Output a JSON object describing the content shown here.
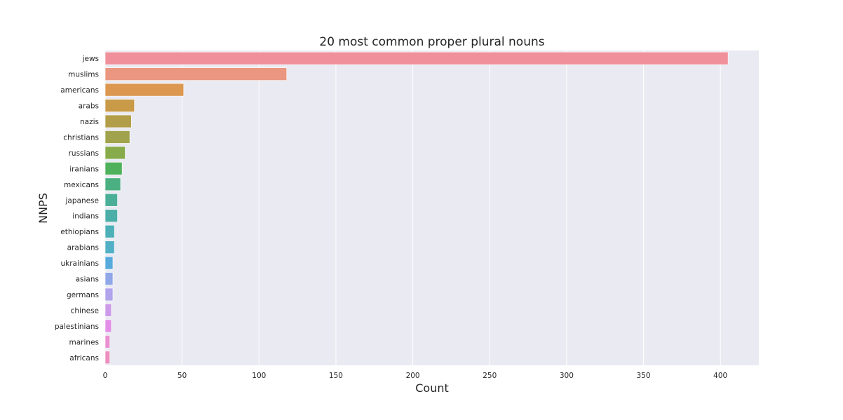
{
  "chart_data": {
    "type": "bar",
    "orientation": "horizontal",
    "title": "20 most common proper plural nouns",
    "xlabel": "Count",
    "ylabel": "NNPS",
    "xlim": [
      0,
      425
    ],
    "xticks": [
      0,
      50,
      100,
      150,
      200,
      250,
      300,
      350,
      400
    ],
    "grid": true,
    "categories": [
      "jews",
      "muslims",
      "americans",
      "arabs",
      "nazis",
      "christians",
      "russians",
      "iranians",
      "mexicans",
      "japanese",
      "indians",
      "ethiopians",
      "arabians",
      "ukrainians",
      "asians",
      "germans",
      "chinese",
      "palestinians",
      "marines",
      "africans"
    ],
    "values": [
      405,
      118,
      51,
      19,
      17,
      16,
      13,
      11,
      10,
      8,
      8,
      6,
      6,
      5,
      5,
      5,
      4,
      4,
      3,
      3
    ],
    "colors": [
      "#f0909b",
      "#ea9680",
      "#dc9850",
      "#c99b48",
      "#b29e49",
      "#a0a34b",
      "#87ab4a",
      "#50b15c",
      "#4bb081",
      "#4baf98",
      "#4bafa7",
      "#4cb0b6",
      "#52b0c6",
      "#58aadc",
      "#90a8e8",
      "#b1a3ec",
      "#cd9aea",
      "#e38fe8",
      "#ea8fd2",
      "#ec8fbd"
    ]
  }
}
